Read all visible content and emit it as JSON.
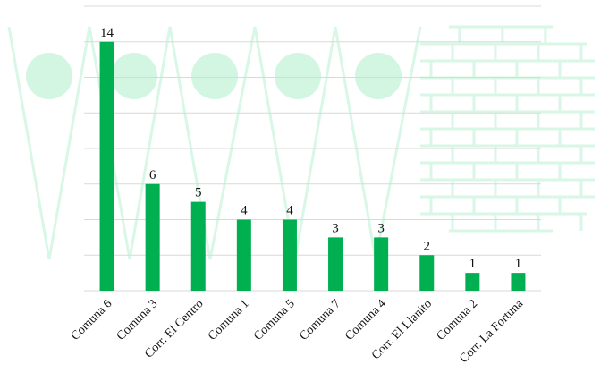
{
  "colors": {
    "bar": "#00b050",
    "grid": "#d9d9d9",
    "watermark": "#d9f7e6",
    "watermark_fill": "#d3f6e3"
  },
  "chart_data": {
    "type": "bar",
    "categories": [
      "Comuna 6",
      "Comuna 3",
      "Corr. El Centro",
      "Comuna 1",
      "Comuna 5",
      "Comuna 7",
      "Comuna 4",
      "Corr. El Llanito",
      "Comuna 2",
      "Corr. La Fortuna"
    ],
    "values": [
      14,
      6,
      5,
      4,
      4,
      3,
      3,
      2,
      1,
      1
    ],
    "title": "",
    "xlabel": "",
    "ylabel": "",
    "ylim": [
      0,
      16
    ],
    "grid": true,
    "data_labels": true
  }
}
